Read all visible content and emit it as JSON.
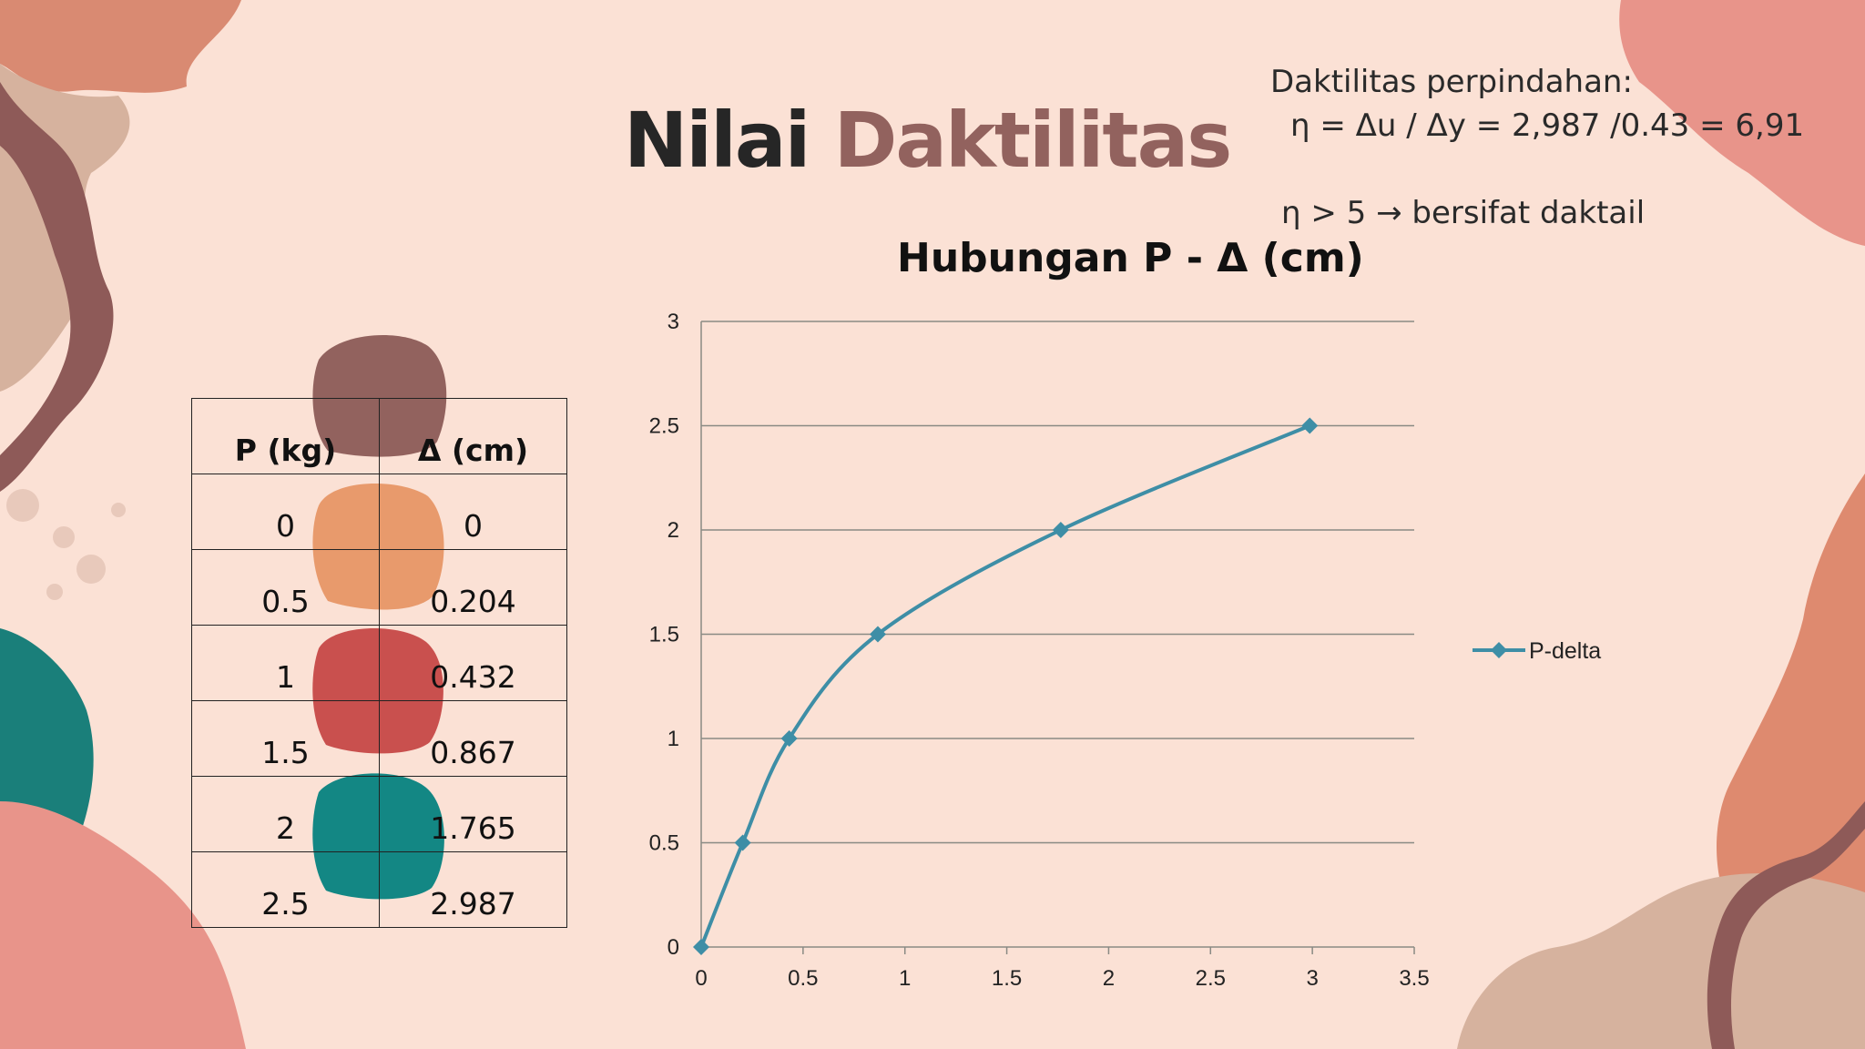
{
  "slide": {
    "title_word1": "Nilai",
    "title_word2": "Daktilitas"
  },
  "formula": {
    "line1": "Daktilitas perpindahan:",
    "line2": "η = Δu / Δy = 2,987 /0.43 = 6,91",
    "line3": "η > 5 → bersifat daktail"
  },
  "table": {
    "headers": [
      "P (kg)",
      "Δ (cm)"
    ],
    "rows": [
      [
        "0",
        "0"
      ],
      [
        "0.5",
        "0.204"
      ],
      [
        "1",
        "0.432"
      ],
      [
        "1.5",
        "0.867"
      ],
      [
        "2",
        "1.765"
      ],
      [
        "2.5",
        "2.987"
      ]
    ]
  },
  "chart_data": {
    "type": "line",
    "title": "Hubungan P - Δ  (cm)",
    "xlabel": "",
    "ylabel": "",
    "xlim": [
      0,
      3.5
    ],
    "ylim": [
      0,
      3
    ],
    "xticks": [
      "0",
      "0.5",
      "1",
      "1.5",
      "2",
      "2.5",
      "3",
      "3.5"
    ],
    "yticks": [
      "0",
      "0.5",
      "1",
      "1.5",
      "2",
      "2.5",
      "3"
    ],
    "grid": "horizontal",
    "legend_position": "right",
    "series": [
      {
        "name": "P-delta",
        "color": "#3e8ea6",
        "marker": "diamond",
        "x": [
          0,
          0.204,
          0.432,
          0.867,
          1.765,
          2.987
        ],
        "y": [
          0,
          0.5,
          1,
          1.5,
          2,
          2.5
        ]
      }
    ]
  }
}
